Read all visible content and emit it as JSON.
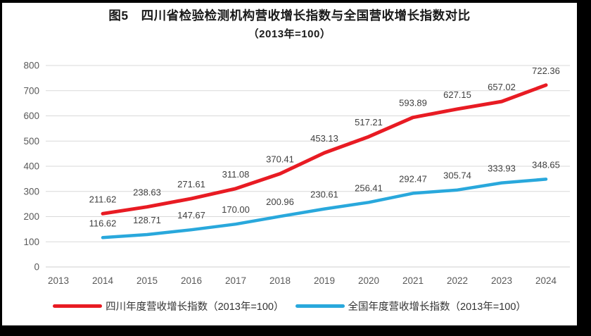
{
  "title": {
    "line1": "图5　四川省检验检测机构营收增长指数与全国营收增长指数对比",
    "line2": "（2013年=100）"
  },
  "colors": {
    "frame": "#000000",
    "background": "#ffffff",
    "grid": "#d9d9d9",
    "zero_axis": "#cfcfcf",
    "axis_text": "#595959",
    "label_text": "#404040",
    "title_text": "#1a1a1a"
  },
  "chart_data": {
    "type": "line",
    "categories": [
      "2013",
      "2014",
      "2015",
      "2016",
      "2017",
      "2018",
      "2019",
      "2020",
      "2021",
      "2022",
      "2023",
      "2024"
    ],
    "series": [
      {
        "name": "四川年度营收增长指数（2013年=100）",
        "color": "#e81b23",
        "values": [
          null,
          211.62,
          238.63,
          271.61,
          311.08,
          370.41,
          453.13,
          517.21,
          593.89,
          627.15,
          657.02,
          722.36
        ]
      },
      {
        "name": "全国年度营收增长指数（2013年=100）",
        "color": "#29a8dc",
        "values": [
          null,
          116.62,
          128.71,
          147.67,
          170.0,
          200.96,
          230.61,
          256.41,
          292.47,
          305.74,
          333.93,
          348.65
        ]
      }
    ],
    "title": "图5　四川省检验检测机构营收增长指数与全国营收增长指数对比（2013年=100）",
    "xlabel": "",
    "ylabel": "",
    "ylim": [
      0,
      800
    ],
    "ytick_step": 100,
    "yticks": [
      0,
      100,
      200,
      300,
      400,
      500,
      600,
      700,
      800
    ],
    "grid": true,
    "value_labels": true,
    "value_decimals": 2,
    "legend_position": "bottom"
  }
}
